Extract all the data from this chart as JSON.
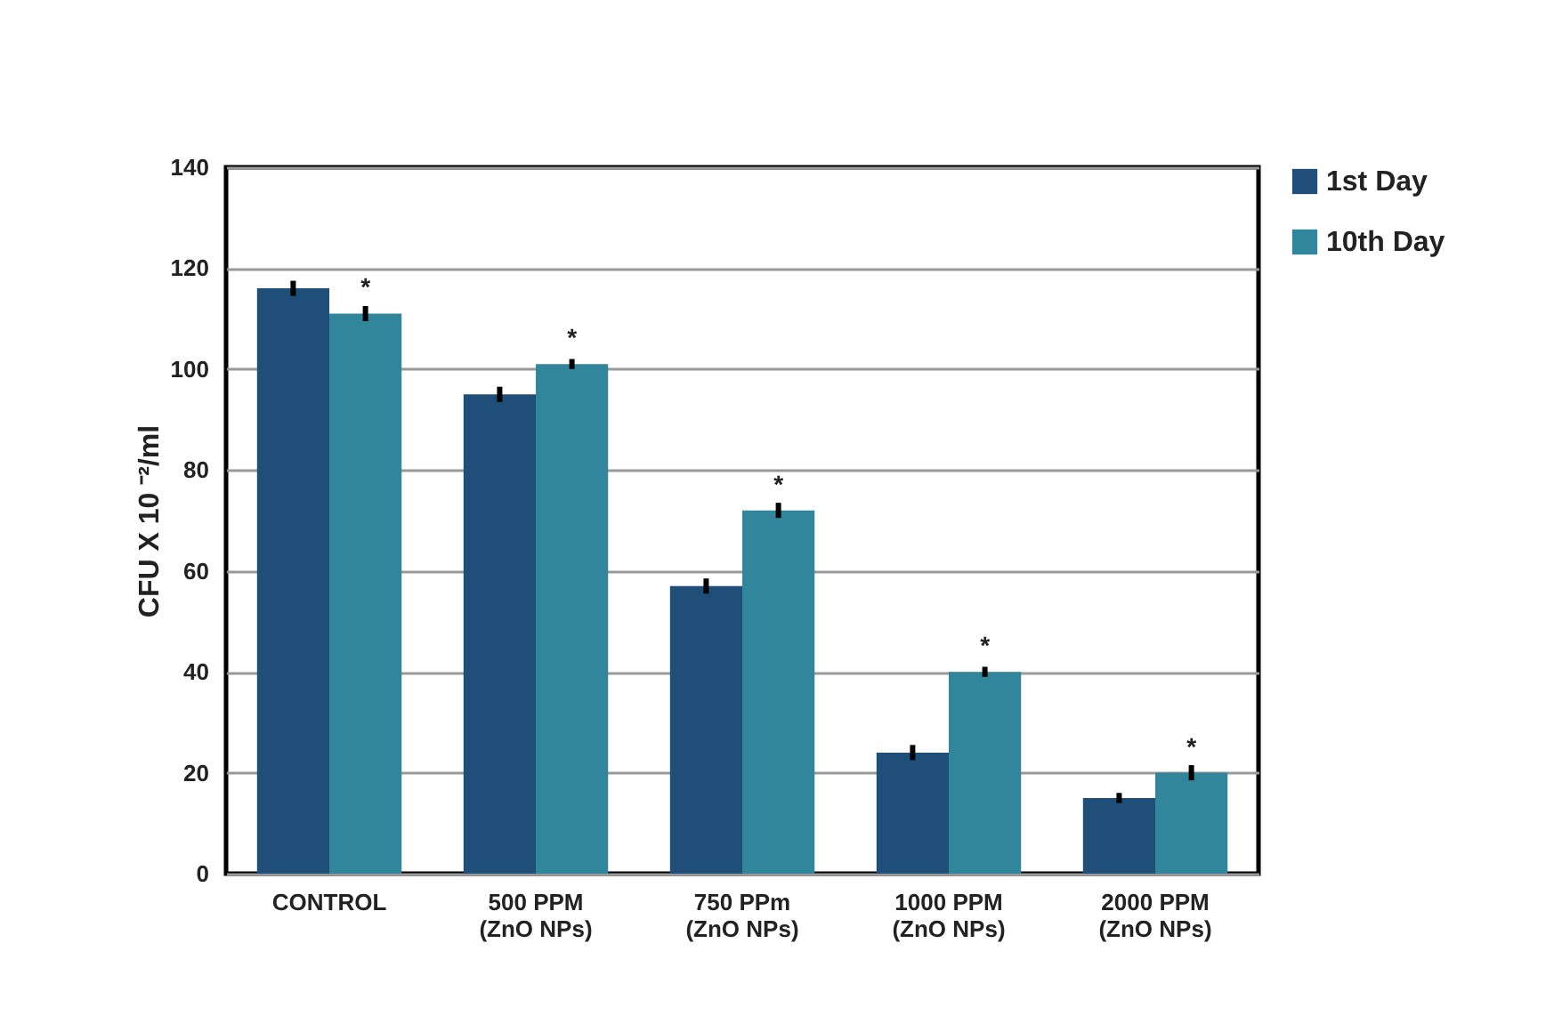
{
  "chart_data": {
    "type": "bar",
    "ylabel": "CFU X 10 ⁻²/ml",
    "categories": [
      "CONTROL",
      "500 PPM\n(ZnO NPs)",
      "750 PPm\n(ZnO NPs)",
      "1000 PPM\n(ZnO NPs)",
      "2000 PPM\n(ZnO NPs)"
    ],
    "series": [
      {
        "name": "1st Day",
        "color": "#1f4e79",
        "values": [
          116,
          95,
          57,
          24,
          15
        ],
        "errors": [
          1.5,
          1.5,
          1.5,
          1.5,
          1
        ]
      },
      {
        "name": "10th Day",
        "color": "#31869b",
        "values": [
          111,
          101,
          72,
          40,
          20
        ],
        "errors": [
          1.5,
          1,
          1.5,
          1,
          1.5
        ]
      }
    ],
    "annotations": [
      {
        "text": "*",
        "x": "CONTROL",
        "y": 111
      },
      {
        "text": "*",
        "x": "500 PPM\n(ZnO NPs)",
        "y": 101
      },
      {
        "text": "*",
        "x": "750 PPm\n(ZnO NPs)",
        "y": 72
      },
      {
        "text": "*",
        "x": "1000 PPM\n(ZnO NPs)",
        "y": 40
      },
      {
        "text": "*",
        "x": "2000 PPM\n(ZnO NPs)",
        "y": 20
      }
    ],
    "ylim": [
      0,
      140
    ],
    "yticks": [
      0,
      20,
      40,
      60,
      80,
      100,
      120,
      140
    ],
    "grid": "y",
    "legend": "right"
  }
}
